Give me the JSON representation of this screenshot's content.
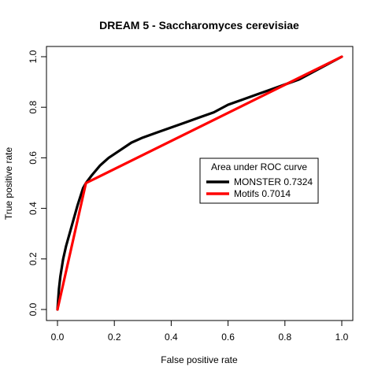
{
  "chart_data": {
    "type": "line",
    "title": "DREAM 5 - Saccharomyces cerevisiae",
    "xlabel": "False positive rate",
    "ylabel": "True positive rate",
    "xlim": [
      0,
      1
    ],
    "ylim": [
      0,
      1
    ],
    "xticks": [
      "0.0",
      "0.2",
      "0.4",
      "0.6",
      "0.8",
      "1.0"
    ],
    "yticks": [
      "0.0",
      "0.2",
      "0.4",
      "0.6",
      "0.8",
      "1.0"
    ],
    "grid": false,
    "legend": {
      "title": "Area under ROC curve",
      "placement": "center-right"
    },
    "series": [
      {
        "name": "MONSTER 0.7324",
        "color": "#000000",
        "x": [
          0,
          0.005,
          0.01,
          0.02,
          0.03,
          0.05,
          0.07,
          0.09,
          0.1,
          0.12,
          0.15,
          0.18,
          0.22,
          0.26,
          0.3,
          0.35,
          0.4,
          0.45,
          0.5,
          0.55,
          0.6,
          0.65,
          0.7,
          0.75,
          0.8,
          0.85,
          0.9,
          0.95,
          1.0
        ],
        "y": [
          0,
          0.08,
          0.13,
          0.2,
          0.25,
          0.33,
          0.41,
          0.48,
          0.5,
          0.53,
          0.57,
          0.6,
          0.63,
          0.66,
          0.68,
          0.7,
          0.72,
          0.74,
          0.76,
          0.78,
          0.81,
          0.83,
          0.85,
          0.87,
          0.89,
          0.91,
          0.94,
          0.97,
          1.0
        ]
      },
      {
        "name": "Motifs 0.7014",
        "color": "#ff0000",
        "x": [
          0,
          0.1,
          1.0
        ],
        "y": [
          0,
          0.5,
          1.0
        ]
      }
    ]
  }
}
